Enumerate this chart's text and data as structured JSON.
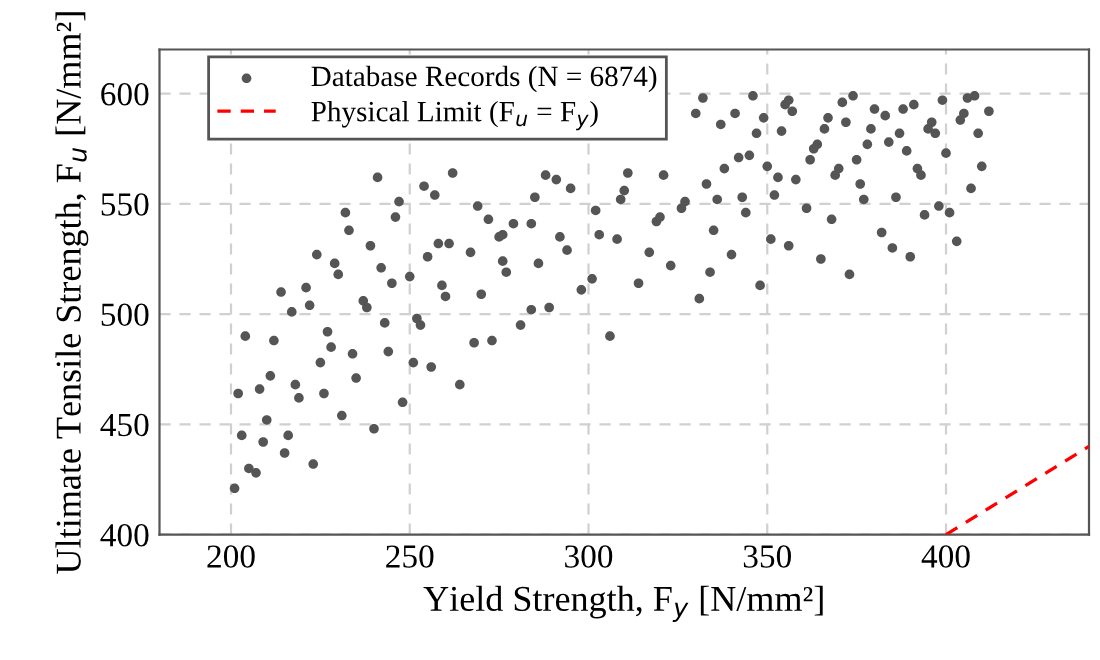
{
  "chart_data": {
    "type": "scatter",
    "xlabel": "Yield Strength, F$_{y}$ [N/mm²]",
    "ylabel": "Ultimate Tensile Strength, F$_{u}$ [N/mm²]",
    "xlim": [
      180,
      440
    ],
    "ylim": [
      400,
      620
    ],
    "xticks": [
      200,
      250,
      300,
      350,
      400
    ],
    "yticks": [
      400,
      450,
      500,
      550,
      600
    ],
    "grid": true,
    "legend": "top left",
    "series": [
      {
        "name": "Database Records (N = 6874)",
        "marker": "circle",
        "color": "#555555",
        "x": [
          201,
          202,
          203,
          204,
          205,
          207,
          208,
          209,
          210,
          211,
          212,
          214,
          215,
          216,
          217,
          218,
          219,
          221,
          222,
          223,
          224,
          225,
          226,
          227,
          228,
          229,
          230,
          231,
          232,
          233,
          234,
          235,
          237,
          238,
          239,
          240,
          241,
          242,
          243,
          244,
          245,
          246,
          247,
          248,
          250,
          251,
          252,
          253,
          254,
          255,
          256,
          257,
          258,
          259,
          260,
          261,
          262,
          264,
          267,
          268,
          269,
          270,
          272,
          273,
          275,
          276,
          279,
          284,
          276,
          277,
          281,
          284,
          285,
          286,
          288,
          289,
          291,
          292,
          294,
          295,
          298,
          301,
          302,
          303,
          306,
          308,
          309,
          310,
          311,
          314,
          317,
          319,
          320,
          321,
          323,
          326,
          327,
          330,
          331,
          332,
          333,
          334,
          335,
          336,
          337,
          338,
          340,
          341,
          342,
          343,
          344,
          345,
          346,
          347,
          348,
          349,
          350,
          351,
          352,
          353,
          354,
          356,
          355,
          356,
          357,
          358,
          361,
          362,
          363,
          364,
          365,
          366,
          367,
          368,
          369,
          370,
          371,
          372,
          373,
          374,
          375,
          376,
          377,
          378,
          379,
          380,
          382,
          383,
          384,
          385,
          386,
          387,
          388,
          389,
          390,
          391,
          392,
          393,
          394,
          395,
          396,
          397,
          398,
          399,
          400,
          401,
          403,
          404,
          405,
          406,
          407,
          408,
          409,
          410,
          412
        ],
        "values": [
          421,
          464,
          445,
          490,
          430,
          428,
          466,
          442,
          452,
          472,
          488,
          510,
          437,
          445,
          501,
          468,
          462,
          512,
          504,
          432,
          527,
          478,
          464,
          492,
          485,
          523,
          518,
          454,
          546,
          538,
          482,
          471,
          506,
          503,
          531,
          448,
          562,
          521,
          496,
          483,
          514,
          544,
          551,
          460,
          517,
          478,
          498,
          495,
          558,
          526,
          476,
          554,
          532,
          513,
          508,
          532,
          564,
          468,
          528,
          487,
          549,
          509,
          543,
          488,
          535,
          536,
          541,
          541,
          524,
          519,
          495,
          502,
          553,
          523,
          563,
          503,
          561,
          535,
          529,
          557,
          511,
          516,
          547,
          536,
          490,
          534,
          552,
          556,
          564,
          514,
          528,
          542,
          544,
          563,
          522,
          548,
          551,
          591,
          507,
          598,
          559,
          519,
          538,
          552,
          586,
          566,
          527,
          591,
          571,
          553,
          546,
          572,
          599,
          582,
          513,
          589,
          567,
          534,
          554,
          562,
          583,
          531,
          595,
          597,
          592,
          561,
          548,
          570,
          575,
          577,
          525,
          584,
          589,
          543,
          563,
          566,
          596,
          587,
          518,
          599,
          570,
          559,
          552,
          577,
          584,
          593,
          537,
          590,
          578,
          530,
          553,
          582,
          593,
          574,
          526,
          595,
          566,
          563,
          545,
          584,
          587,
          582,
          549,
          597,
          573,
          546,
          533,
          588,
          591,
          598,
          557,
          599,
          582,
          567,
          592
        ]
      },
      {
        "name": "Physical Limit (F$_{u}$ = F$_{y}$)",
        "type": "line",
        "line_style": "dashed",
        "color": "#ff0000",
        "x": [
          400,
          440
        ],
        "values": [
          400,
          440
        ]
      }
    ]
  }
}
